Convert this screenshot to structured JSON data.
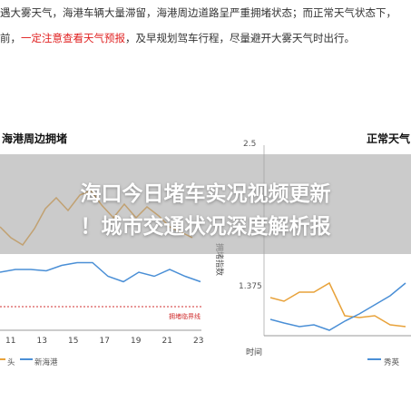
{
  "article": {
    "line1": "遇大雾天气，海港车辆大量滞留，海港周边道路呈严重拥堵状态；而正常天气状态下，",
    "line2_pre": "前，",
    "line2_warn": "一定注意查看天气预报",
    "line2_post": "，及早规划驾车行程，尽量避开大雾天气时出行。"
  },
  "overlay": {
    "headline1": "海口今日堵车实况视频更新",
    "headline2": "！城市交通状况深度解析报"
  },
  "charts": {
    "left_title": "海港周边拥堵",
    "right_title": "正常天气",
    "threshold_label": "拥堵临界线",
    "y_axis_label": "拥堵指数",
    "y_ticks": [
      "2.5",
      "1.375"
    ],
    "x_axis_name": "时间",
    "x_ticks": [
      "11",
      "13",
      "15",
      "17",
      "19",
      "21",
      "23"
    ],
    "legend_left": [
      "头",
      "新海港"
    ],
    "legend_right": "秀英"
  },
  "colors": {
    "orange": "#e8a23a",
    "blue": "#4a8fd6",
    "threshold": "#d03030",
    "warn": "#e02020"
  },
  "chart_data": {
    "type": "line",
    "title": "",
    "y_ticks": [
      2.5,
      1.375
    ],
    "x_ticks": [
      11,
      13,
      15,
      17,
      19,
      21,
      23
    ],
    "series": [
      {
        "name": "新海港",
        "values": [
          1.45,
          1.47,
          1.47,
          1.46,
          1.5,
          1.52,
          1.52,
          1.42,
          1.38,
          1.45,
          1.42,
          1.47,
          1.42,
          1.38
        ]
      }
    ]
  }
}
